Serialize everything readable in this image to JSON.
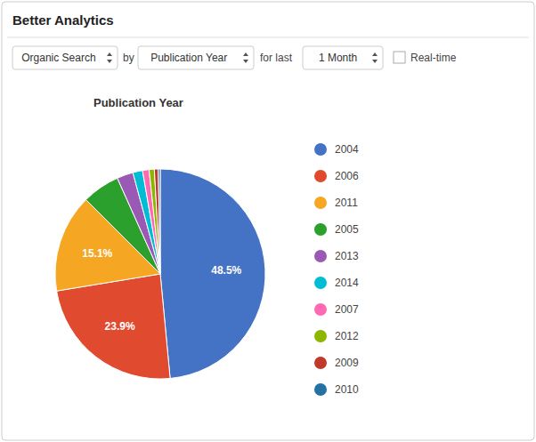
{
  "chart_data": {
    "type": "pie",
    "title": "Better Analytics",
    "subtitle": "Publication Year",
    "annotations": [
      "Organic Search",
      "by",
      "Publication Year",
      "for last",
      "1 Month",
      "Real-time"
    ],
    "categories": [
      "2004",
      "2006",
      "2011",
      "2005",
      "2013",
      "2014",
      "2007",
      "2012",
      "2009",
      "2010"
    ],
    "values": [
      48.5,
      23.9,
      15.1,
      5.8,
      2.5,
      1.5,
      1.0,
      0.8,
      0.6,
      0.3
    ],
    "colors": [
      "#4472C4",
      "#E04A2F",
      "#F5A623",
      "#2CA02C",
      "#9B59B6",
      "#00BCD4",
      "#FF69B4",
      "#8DB600",
      "#C0392B",
      "#2471A3"
    ],
    "value_labels": [
      "48.5%",
      "23.9%",
      "15.1%",
      null,
      null,
      null,
      null,
      null,
      null,
      null
    ],
    "data_labels": true,
    "legend": "right"
  }
}
